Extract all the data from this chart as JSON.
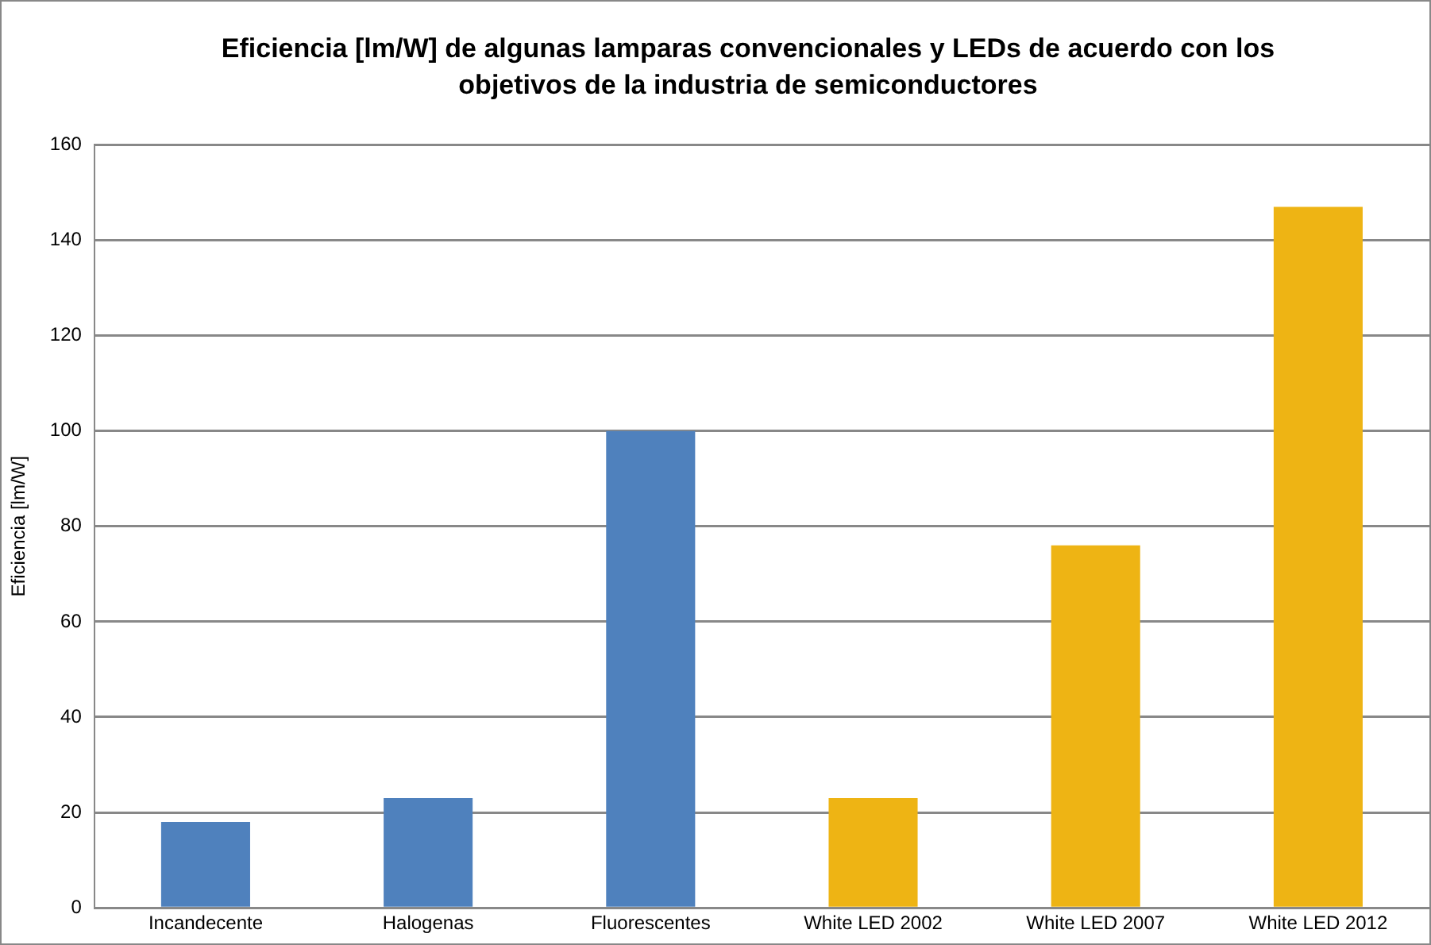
{
  "chart_data": {
    "type": "bar",
    "title": "Eficiencia [lm/W] de algunas lamparas convencionales y LEDs de acuerdo con los objetivos de la industria de semiconductores",
    "ylabel": "Eficiencia [lm/W]",
    "categories": [
      "Incandecente",
      "Halogenas",
      "Fluorescentes",
      "White LED 2002",
      "White LED 2007",
      "White LED 2012"
    ],
    "values": [
      18,
      23,
      100,
      23,
      76,
      147
    ],
    "colors": [
      "#4f81bd",
      "#4f81bd",
      "#4f81bd",
      "#eeb414",
      "#eeb414",
      "#eeb414"
    ],
    "ylim": [
      0,
      160
    ],
    "yticks": [
      0,
      20,
      40,
      60,
      80,
      100,
      120,
      140,
      160
    ],
    "grid": "y",
    "legend": false
  }
}
